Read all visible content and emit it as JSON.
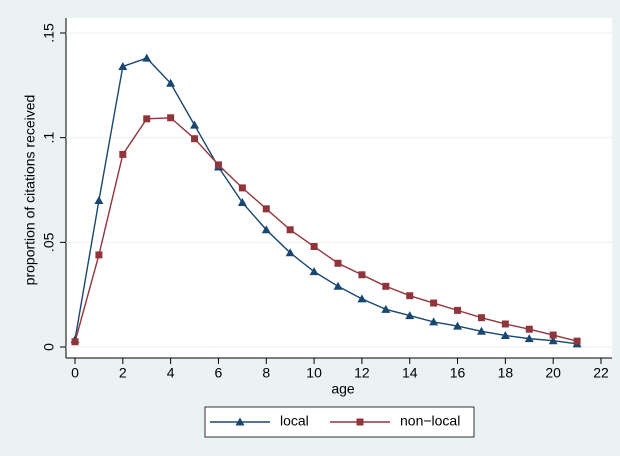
{
  "chart_data": {
    "type": "line",
    "x_label": "age",
    "y_label": "proportion of citations received",
    "x": [
      0,
      1,
      2,
      3,
      4,
      5,
      6,
      7,
      8,
      9,
      10,
      11,
      12,
      13,
      14,
      15,
      16,
      17,
      18,
      19,
      20,
      21
    ],
    "xlim": [
      0,
      22
    ],
    "xticks": [
      0,
      2,
      4,
      6,
      8,
      10,
      12,
      14,
      16,
      18,
      20,
      22
    ],
    "ylim": [
      0,
      0.15
    ],
    "yticks": [
      0,
      {
        "value": 0.05,
        "label": ".05"
      },
      {
        "value": 0.1,
        "label": ".1"
      },
      {
        "value": 0.15,
        "label": ".15"
      }
    ],
    "grid": true,
    "legend_position": "bottom",
    "series": [
      {
        "name": "local",
        "color": "#1a476f",
        "marker": "triangle",
        "values": [
          0.0035,
          0.07,
          0.134,
          0.138,
          0.126,
          0.106,
          0.086,
          0.069,
          0.056,
          0.045,
          0.036,
          0.029,
          0.023,
          0.018,
          0.015,
          0.012,
          0.01,
          0.0075,
          0.0055,
          0.004,
          0.003,
          0.0015
        ]
      },
      {
        "name": "non−local",
        "color": "#90353b",
        "marker": "square",
        "values": [
          0.0025,
          0.044,
          0.092,
          0.109,
          0.1095,
          0.0995,
          0.087,
          0.076,
          0.066,
          0.056,
          0.048,
          0.04,
          0.0345,
          0.029,
          0.0245,
          0.021,
          0.0175,
          0.014,
          0.011,
          0.0085,
          0.0057,
          0.0028
        ]
      }
    ]
  }
}
